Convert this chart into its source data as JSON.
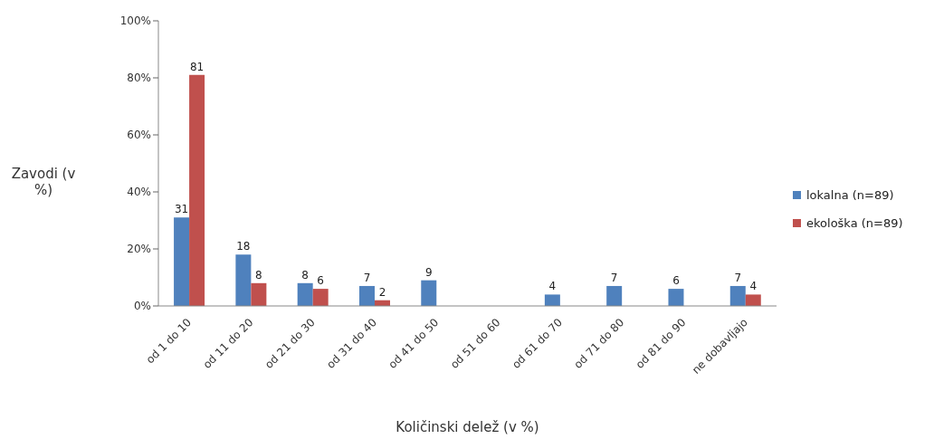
{
  "chart_data": {
    "type": "bar",
    "xlabel": "Količinski delež (v %)",
    "ylabel": "Zavodi (v %)",
    "categories": [
      "od 1 do 10",
      "od 11 do 20",
      "od 21 do 30",
      "od 31 do 40",
      "od 41 do 50",
      "od 51 do 60",
      "od 61 do 70",
      "od 71 do 80",
      "od 81 do 90",
      "ne dobavljajo"
    ],
    "series": [
      {
        "name": "lokalna (n=89)",
        "color": "#4f81bd",
        "values": [
          31,
          18,
          8,
          7,
          9,
          null,
          4,
          7,
          6,
          7
        ]
      },
      {
        "name": "ekološka (n=89)",
        "color": "#c0504d",
        "values": [
          81,
          8,
          6,
          2,
          null,
          null,
          null,
          null,
          null,
          4
        ]
      }
    ],
    "ylim": [
      0,
      100
    ],
    "yticks": [
      {
        "value": 0,
        "label": "0%"
      },
      {
        "value": 20,
        "label": "20%"
      },
      {
        "value": 40,
        "label": "40%"
      },
      {
        "value": 60,
        "label": "60%"
      },
      {
        "value": 80,
        "label": "80%"
      },
      {
        "value": 100,
        "label": "100%"
      }
    ],
    "data_labels": true,
    "legend": "right",
    "grid": false
  }
}
